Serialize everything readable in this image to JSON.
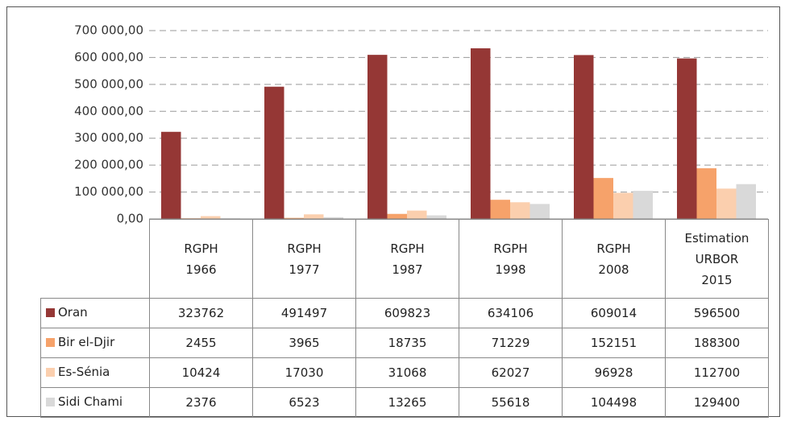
{
  "chart_data": {
    "type": "bar",
    "categories": [
      "RGPH\n1966",
      "RGPH\n1977",
      "RGPH\n1987",
      "RGPH\n1998",
      "RGPH\n2008",
      "Estimation\nURBOR\n2015"
    ],
    "series": [
      {
        "name": "Oran",
        "color": "#953735",
        "values": [
          323762,
          491497,
          609823,
          634106,
          609014,
          596500
        ]
      },
      {
        "name": "Bir el-Djir",
        "color": "#f6a26a",
        "values": [
          2455,
          3965,
          18735,
          71229,
          152151,
          188300
        ]
      },
      {
        "name": "Es-Sénia",
        "color": "#fbcfae",
        "values": [
          10424,
          17030,
          31068,
          62027,
          96928,
          112700
        ]
      },
      {
        "name": "Sidi Chami",
        "color": "#d9d9d9",
        "values": [
          2376,
          6523,
          13265,
          55618,
          104498,
          129400
        ]
      }
    ],
    "ylim": [
      0,
      700000
    ],
    "yticks": [
      {
        "value": 0,
        "label": "0,00"
      },
      {
        "value": 100000,
        "label": "100 000,00"
      },
      {
        "value": 200000,
        "label": "200 000,00"
      },
      {
        "value": 300000,
        "label": "300 000,00"
      },
      {
        "value": 400000,
        "label": "400 000,00"
      },
      {
        "value": 500000,
        "label": "500 000,00"
      },
      {
        "value": 600000,
        "label": "600 000,00"
      },
      {
        "value": 700000,
        "label": "700 000,00"
      }
    ],
    "grid": true
  }
}
